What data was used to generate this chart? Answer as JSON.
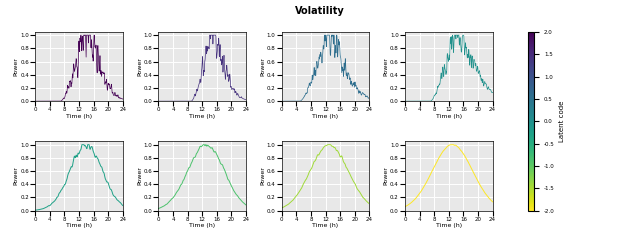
{
  "title": "Volatility",
  "xlabel": "Time (h)",
  "ylabel": "Power",
  "x_ticks": [
    0,
    4,
    8,
    12,
    16,
    20,
    24
  ],
  "x_lim": [
    0,
    24
  ],
  "y_lim": [
    0,
    1.05
  ],
  "colormap": "viridis",
  "background_color": "#e8e8e8",
  "grid_color": "white",
  "cbar_label": "Latent code",
  "cbar_vmin": -2.0,
  "cbar_vmax": 2.0,
  "latent_codes_row1": [
    -2.0,
    -1.43,
    -0.57,
    0.0
  ],
  "latent_codes_row2": [
    0.29,
    0.86,
    1.43,
    2.0
  ],
  "title_fontsize": 7,
  "axis_fontsize": 4.5,
  "tick_fontsize": 4.0,
  "linewidth_row1": 0.5,
  "linewidth_row2": 0.7
}
